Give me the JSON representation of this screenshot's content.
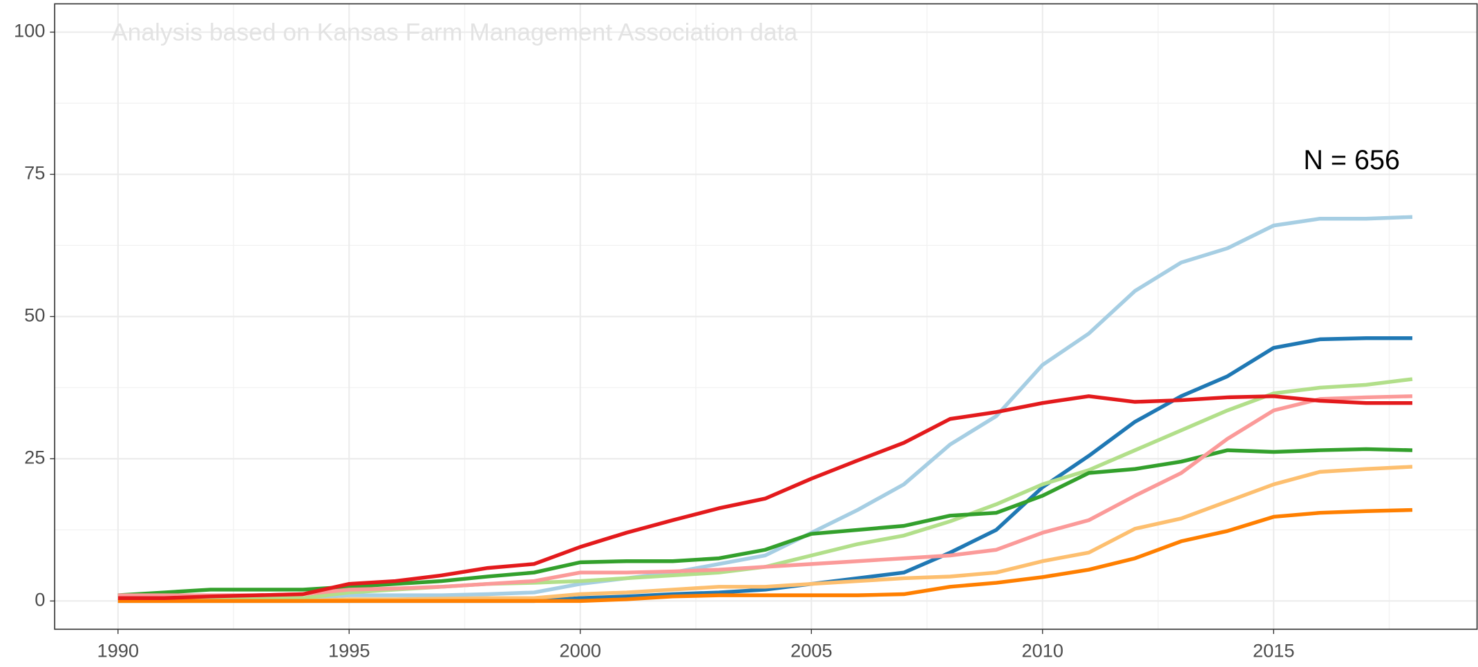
{
  "chart_data": {
    "type": "line",
    "annotations": [
      "Analysis based on Kansas Farm Management Association data",
      "N = 656"
    ],
    "x": [
      1990,
      1991,
      1992,
      1993,
      1994,
      1995,
      1996,
      1997,
      1998,
      1999,
      2000,
      2001,
      2002,
      2003,
      2004,
      2005,
      2006,
      2007,
      2008,
      2009,
      2010,
      2011,
      2012,
      2013,
      2014,
      2015,
      2016,
      2017,
      2018
    ],
    "series": [
      {
        "color": "#a6cee3",
        "values": [
          1,
          0.5,
          0.5,
          0.5,
          0.5,
          1,
          1,
          1,
          1.2,
          1.5,
          3,
          4,
          5,
          6.5,
          8,
          12,
          16,
          20.5,
          27.5,
          32.5,
          41.5,
          47,
          54.5,
          59.5,
          62,
          66,
          67.2,
          67.2,
          67.5
        ]
      },
      {
        "color": "#1f78b4",
        "values": [
          0,
          0,
          0,
          0,
          0,
          0,
          0,
          0,
          0,
          0,
          0.5,
          0.8,
          1.2,
          1.5,
          2,
          3,
          4,
          5,
          8.5,
          12.5,
          20,
          25.5,
          31.5,
          36,
          39.5,
          44.5,
          46,
          46.2,
          46.2
        ]
      },
      {
        "color": "#b2df8a",
        "values": [
          0.5,
          0.5,
          0.5,
          0.5,
          0.5,
          1.5,
          2,
          2.5,
          3,
          3.2,
          3.5,
          4,
          4.5,
          5,
          6,
          8,
          10,
          11.5,
          14,
          17,
          20.5,
          23,
          26.5,
          30,
          33.5,
          36.5,
          37.5,
          38,
          39
        ]
      },
      {
        "color": "#33a02c",
        "values": [
          1,
          1.5,
          2,
          2,
          2,
          2.5,
          3,
          3.5,
          4.3,
          5,
          6.8,
          7,
          7,
          7.5,
          9,
          11.8,
          12.5,
          13.2,
          15,
          15.5,
          18.5,
          22.5,
          23.2,
          24.5,
          26.5,
          26.2,
          26.5,
          26.7,
          26.5
        ]
      },
      {
        "color": "#fb9a99",
        "values": [
          1,
          1,
          1,
          1,
          1.2,
          2,
          2.2,
          2.5,
          3,
          3.5,
          5,
          5,
          5.2,
          5.5,
          6,
          6.5,
          7,
          7.5,
          8,
          9,
          12,
          14.2,
          18.5,
          22.5,
          28.5,
          33.5,
          35.5,
          35.8,
          36
        ]
      },
      {
        "color": "#fdbf6f",
        "values": [
          0,
          0,
          0,
          0,
          0,
          0.3,
          0.3,
          0.4,
          0.5,
          0.5,
          1.2,
          1.5,
          2,
          2.5,
          2.5,
          3,
          3.5,
          4,
          4.3,
          5,
          7,
          8.5,
          12.7,
          14.5,
          17.5,
          20.5,
          22.7,
          23.2,
          23.6
        ]
      },
      {
        "color": "#ff7f00",
        "values": [
          0,
          0,
          0,
          0,
          0,
          0,
          0,
          0,
          0,
          0,
          0,
          0.3,
          0.8,
          1,
          1,
          1,
          1,
          1.2,
          2.5,
          3.2,
          4.2,
          5.5,
          7.5,
          10.5,
          12.3,
          14.8,
          15.5,
          15.8,
          16
        ]
      },
      {
        "color": "#e31a1c",
        "values": [
          0.5,
          0.5,
          0.8,
          1,
          1.2,
          3,
          3.5,
          4.5,
          5.8,
          6.5,
          9.5,
          12,
          14.2,
          16.3,
          18,
          21.5,
          24.7,
          27.8,
          32,
          33.2,
          34.8,
          36,
          35,
          35.3,
          35.8,
          36,
          35.2,
          34.8,
          34.8
        ]
      }
    ],
    "xlim": [
      1988.63,
      2019.4
    ],
    "xticks": [
      1990,
      1995,
      2000,
      2005,
      2010,
      2015
    ],
    "ylim": [
      -4.97,
      104.97
    ],
    "yticks": [
      0,
      25,
      50,
      75,
      100
    ],
    "grid": true
  }
}
